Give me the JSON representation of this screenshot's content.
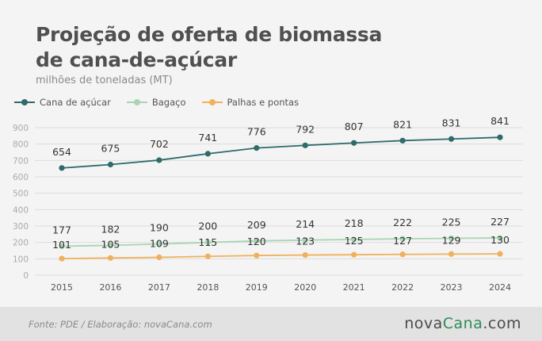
{
  "header": {
    "title_line1": "Projeção de oferta de biomassa",
    "title_line2": "de cana-de-açúcar",
    "subtitle": "milhões de toneladas (MT)"
  },
  "legend": [
    {
      "name": "Cana de açúcar",
      "color": "#2e6b6b"
    },
    {
      "name": "Bagaço",
      "color": "#a8d5b5"
    },
    {
      "name": "Palhas e pontas",
      "color": "#f0b15c"
    }
  ],
  "footer": {
    "source": "Fonte: PDE / Elaboração: novaCana.com",
    "brand_part1": "nova",
    "brand_part2": "Cana",
    "brand_part3": ".com"
  },
  "chart_data": {
    "type": "line",
    "title": "Projeção de oferta de biomassa de cana-de-açúcar",
    "ylabel": "milhões de toneladas (MT)",
    "xlabel": "",
    "x": [
      "2015",
      "2016",
      "2017",
      "2018",
      "2019",
      "2020",
      "2021",
      "2022",
      "2023",
      "2024"
    ],
    "ylim": [
      0,
      900
    ],
    "yticks": [
      0,
      100,
      200,
      300,
      400,
      500,
      600,
      700,
      800,
      900
    ],
    "grid": true,
    "legend_position": "top-left",
    "series": [
      {
        "name": "Cana de açúcar",
        "color": "#2e6b6b",
        "values": [
          654,
          675,
          702,
          741,
          776,
          792,
          807,
          821,
          831,
          841
        ]
      },
      {
        "name": "Bagaço",
        "color": "#a8d5b5",
        "values": [
          177,
          182,
          190,
          200,
          209,
          214,
          218,
          222,
          225,
          227
        ]
      },
      {
        "name": "Palhas e pontas",
        "color": "#f0b15c",
        "values": [
          101,
          105,
          109,
          115,
          120,
          123,
          125,
          127,
          129,
          130
        ]
      }
    ]
  }
}
